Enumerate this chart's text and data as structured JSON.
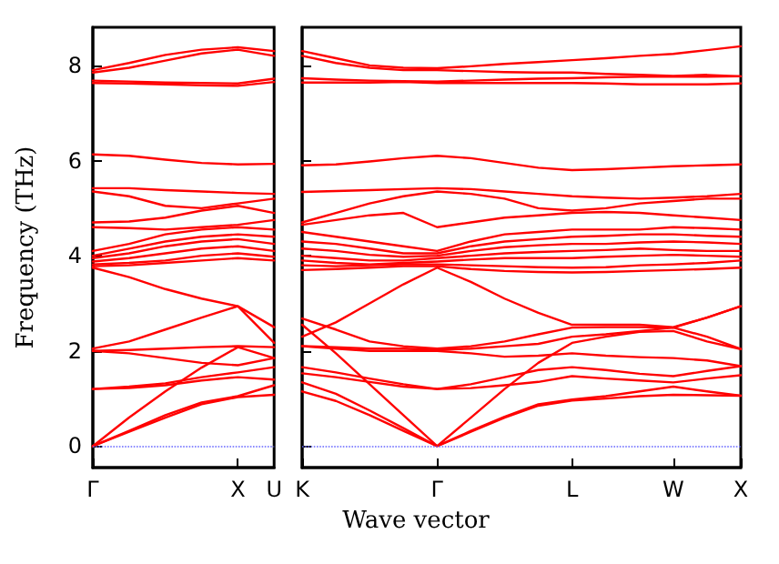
{
  "chart_data": [
    {
      "type": "line",
      "ylabel": "Frequency (THz)",
      "categories": [
        "Γ",
        null,
        null,
        null,
        "X",
        "U"
      ],
      "ylim": [
        -0.45,
        8.8
      ],
      "yticks": [
        0,
        2,
        4,
        6,
        8
      ],
      "grid": false,
      "marker": "none",
      "line_style": "solid",
      "ref_lines": [
        {
          "axis": "y",
          "value": 0,
          "color": "#6666ff",
          "line_style": "dotted"
        }
      ],
      "series": [
        {
          "color": "#ff0000",
          "values": [
            0,
            0.3,
            0.6,
            0.88,
            1.03,
            1.08
          ]
        },
        {
          "color": "#ff0000",
          "values": [
            0,
            0.32,
            0.65,
            0.92,
            1.05,
            1.28
          ]
        },
        {
          "color": "#ff0000",
          "values": [
            0,
            0.6,
            1.15,
            1.65,
            2.08,
            1.85
          ]
        },
        {
          "color": "#ff0000",
          "values": [
            1.2,
            1.22,
            1.28,
            1.38,
            1.45,
            1.4
          ]
        },
        {
          "color": "#ff0000",
          "values": [
            1.2,
            1.25,
            1.32,
            1.45,
            1.55,
            1.66
          ]
        },
        {
          "color": "#ff0000",
          "values": [
            2.0,
            1.95,
            1.85,
            1.75,
            1.7,
            1.85
          ]
        },
        {
          "color": "#ff0000",
          "values": [
            2.0,
            2.02,
            2.05,
            2.08,
            2.1,
            2.08
          ]
        },
        {
          "color": "#ff0000",
          "values": [
            2.05,
            2.2,
            2.45,
            2.7,
            2.94,
            2.17
          ]
        },
        {
          "color": "#ff0000",
          "values": [
            3.75,
            3.55,
            3.3,
            3.1,
            2.94,
            2.5
          ]
        },
        {
          "color": "#ff0000",
          "values": [
            3.78,
            3.8,
            3.85,
            3.9,
            3.95,
            3.9
          ]
        },
        {
          "color": "#ff0000",
          "values": [
            3.82,
            3.85,
            3.9,
            4.0,
            4.05,
            3.98
          ]
        },
        {
          "color": "#ff0000",
          "values": [
            3.88,
            3.95,
            4.05,
            4.15,
            4.2,
            4.1
          ]
        },
        {
          "color": "#ff0000",
          "values": [
            3.95,
            4.05,
            4.2,
            4.3,
            4.35,
            4.25
          ]
        },
        {
          "color": "#ff0000",
          "values": [
            4.0,
            4.15,
            4.3,
            4.4,
            4.45,
            4.4
          ]
        },
        {
          "color": "#ff0000",
          "values": [
            4.1,
            4.25,
            4.45,
            4.55,
            4.6,
            4.55
          ]
        },
        {
          "color": "#ff0000",
          "values": [
            4.6,
            4.58,
            4.55,
            4.6,
            4.65,
            4.75
          ]
        },
        {
          "color": "#ff0000",
          "values": [
            4.7,
            4.72,
            4.8,
            4.95,
            5.05,
            4.9
          ]
        },
        {
          "color": "#ff0000",
          "values": [
            5.35,
            5.25,
            5.05,
            5.0,
            5.1,
            5.2
          ]
        },
        {
          "color": "#ff0000",
          "values": [
            5.42,
            5.42,
            5.38,
            5.35,
            5.32,
            5.3
          ]
        },
        {
          "color": "#ff0000",
          "values": [
            6.13,
            6.1,
            6.02,
            5.95,
            5.92,
            5.93
          ]
        },
        {
          "color": "#ff0000",
          "values": [
            7.63,
            7.62,
            7.6,
            7.58,
            7.57,
            7.65
          ]
        },
        {
          "color": "#ff0000",
          "values": [
            7.68,
            7.66,
            7.64,
            7.63,
            7.62,
            7.72
          ]
        },
        {
          "color": "#ff0000",
          "values": [
            7.85,
            7.95,
            8.1,
            8.25,
            8.33,
            8.2
          ]
        },
        {
          "color": "#ff0000",
          "values": [
            7.9,
            8.05,
            8.22,
            8.33,
            8.38,
            8.3
          ]
        }
      ]
    },
    {
      "type": "line",
      "xlabel": "Wave vector",
      "categories": [
        "K",
        null,
        null,
        null,
        "Γ",
        null,
        null,
        null,
        "L",
        null,
        null,
        "W",
        null,
        "X"
      ],
      "ylim": [
        -0.45,
        8.8
      ],
      "yticks": [
        0,
        2,
        4,
        6,
        8
      ],
      "tick_labels": "x",
      "grid": false,
      "marker": "none",
      "line_style": "solid",
      "ref_lines": [
        {
          "axis": "y",
          "value": 0,
          "color": "#6666ff",
          "line_style": "dotted"
        }
      ],
      "series": [
        {
          "color": "#ff0000",
          "values": [
            1.15,
            0.95,
            0.65,
            0.32,
            0,
            0.3,
            0.6,
            0.85,
            0.96,
            1.0,
            1.05,
            1.08,
            1.07,
            1.06
          ]
        },
        {
          "color": "#ff0000",
          "values": [
            1.34,
            1.1,
            0.75,
            0.38,
            0,
            0.32,
            0.62,
            0.88,
            0.98,
            1.05,
            1.15,
            1.25,
            1.15,
            1.06
          ]
        },
        {
          "color": "#ff0000",
          "values": [
            2.55,
            1.95,
            1.3,
            0.65,
            0,
            0.6,
            1.2,
            1.75,
            2.17,
            2.3,
            2.4,
            2.42,
            2.2,
            2.04
          ]
        },
        {
          "color": "#ff0000",
          "values": [
            1.53,
            1.45,
            1.35,
            1.25,
            1.2,
            1.22,
            1.28,
            1.35,
            1.47,
            1.42,
            1.38,
            1.34,
            1.42,
            1.49
          ]
        },
        {
          "color": "#ff0000",
          "values": [
            1.66,
            1.55,
            1.42,
            1.3,
            1.2,
            1.3,
            1.45,
            1.6,
            1.66,
            1.6,
            1.52,
            1.47,
            1.58,
            1.68
          ]
        },
        {
          "color": "#ff0000",
          "values": [
            2.1,
            2.05,
            2.0,
            2.0,
            2.0,
            1.95,
            1.88,
            1.9,
            1.95,
            1.9,
            1.87,
            1.85,
            1.8,
            1.68
          ]
        },
        {
          "color": "#ff0000",
          "values": [
            2.1,
            2.08,
            2.05,
            2.05,
            2.02,
            2.05,
            2.1,
            2.15,
            2.3,
            2.35,
            2.42,
            2.49,
            2.3,
            2.04
          ]
        },
        {
          "color": "#ff0000",
          "values": [
            2.68,
            2.45,
            2.2,
            2.1,
            2.05,
            2.1,
            2.2,
            2.35,
            2.49,
            2.5,
            2.5,
            2.49,
            2.7,
            2.94
          ]
        },
        {
          "color": "#ff0000",
          "values": [
            2.3,
            2.6,
            3.0,
            3.4,
            3.75,
            3.45,
            3.1,
            2.8,
            2.55,
            2.55,
            2.55,
            2.5,
            2.7,
            2.94
          ]
        },
        {
          "color": "#ff0000",
          "values": [
            3.7,
            3.72,
            3.75,
            3.78,
            3.78,
            3.72,
            3.68,
            3.66,
            3.65,
            3.66,
            3.68,
            3.7,
            3.72,
            3.75
          ]
        },
        {
          "color": "#ff0000",
          "values": [
            3.8,
            3.78,
            3.8,
            3.82,
            3.82,
            3.8,
            3.78,
            3.76,
            3.75,
            3.76,
            3.8,
            3.82,
            3.85,
            3.9
          ]
        },
        {
          "color": "#ff0000",
          "values": [
            3.9,
            3.85,
            3.82,
            3.85,
            3.88,
            3.92,
            3.95,
            3.95,
            3.95,
            3.98,
            4.0,
            4.02,
            4.0,
            3.98
          ]
        },
        {
          "color": "#ff0000",
          "values": [
            4.0,
            3.95,
            3.9,
            3.9,
            3.95,
            4.0,
            4.05,
            4.08,
            4.1,
            4.12,
            4.15,
            4.12,
            4.1,
            4.1
          ]
        },
        {
          "color": "#ff0000",
          "values": [
            4.15,
            4.1,
            4.02,
            3.98,
            4.0,
            4.1,
            4.18,
            4.22,
            4.25,
            4.25,
            4.28,
            4.3,
            4.28,
            4.25
          ]
        },
        {
          "color": "#ff0000",
          "values": [
            4.3,
            4.25,
            4.15,
            4.05,
            4.05,
            4.2,
            4.3,
            4.35,
            4.4,
            4.42,
            4.45,
            4.45,
            4.42,
            4.4
          ]
        },
        {
          "color": "#ff0000",
          "values": [
            4.5,
            4.4,
            4.3,
            4.2,
            4.1,
            4.3,
            4.45,
            4.5,
            4.55,
            4.55,
            4.55,
            4.6,
            4.58,
            4.55
          ]
        },
        {
          "color": "#ff0000",
          "values": [
            4.65,
            4.75,
            4.85,
            4.9,
            4.6,
            4.7,
            4.8,
            4.85,
            4.9,
            4.92,
            4.9,
            4.85,
            4.8,
            4.75
          ]
        },
        {
          "color": "#ff0000",
          "values": [
            4.7,
            4.9,
            5.1,
            5.25,
            5.35,
            5.3,
            5.2,
            5.0,
            4.95,
            5.0,
            5.1,
            5.15,
            5.2,
            5.2
          ]
        },
        {
          "color": "#ff0000",
          "values": [
            5.34,
            5.36,
            5.38,
            5.4,
            5.42,
            5.4,
            5.35,
            5.3,
            5.25,
            5.22,
            5.2,
            5.22,
            5.25,
            5.3
          ]
        },
        {
          "color": "#ff0000",
          "values": [
            5.9,
            5.92,
            5.98,
            6.05,
            6.1,
            6.05,
            5.95,
            5.85,
            5.8,
            5.82,
            5.85,
            5.88,
            5.9,
            5.92
          ]
        },
        {
          "color": "#ff0000",
          "values": [
            7.64,
            7.64,
            7.64,
            7.65,
            7.63,
            7.63,
            7.63,
            7.63,
            7.63,
            7.62,
            7.6,
            7.6,
            7.6,
            7.62
          ]
        },
        {
          "color": "#ff0000",
          "values": [
            7.73,
            7.7,
            7.68,
            7.67,
            7.66,
            7.68,
            7.7,
            7.72,
            7.73,
            7.75,
            7.76,
            7.76,
            7.76,
            7.77
          ]
        },
        {
          "color": "#ff0000",
          "values": [
            8.2,
            8.05,
            7.95,
            7.9,
            7.9,
            7.88,
            7.86,
            7.85,
            7.85,
            7.82,
            7.8,
            7.78,
            7.8,
            7.77
          ]
        },
        {
          "color": "#ff0000",
          "values": [
            8.3,
            8.15,
            8.0,
            7.95,
            7.94,
            7.98,
            8.03,
            8.07,
            8.11,
            8.15,
            8.2,
            8.24,
            8.32,
            8.4
          ]
        }
      ]
    }
  ]
}
